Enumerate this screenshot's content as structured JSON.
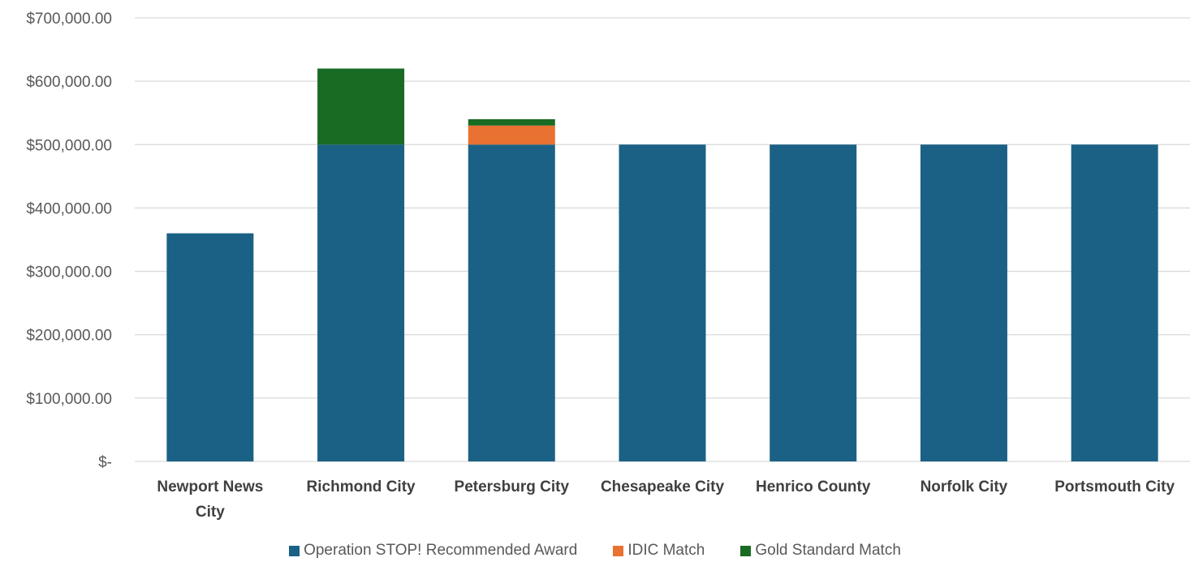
{
  "chart_data": {
    "type": "bar",
    "stacked": true,
    "categories": [
      [
        "Newport News",
        "City"
      ],
      [
        "Richmond City"
      ],
      [
        "Petersburg City"
      ],
      [
        "Chesapeake City"
      ],
      [
        "Henrico County"
      ],
      [
        "Norfolk City"
      ],
      [
        "Portsmouth City"
      ]
    ],
    "series": [
      {
        "name": "Operation STOP! Recommended Award",
        "color": "#1B6185",
        "values": [
          360000,
          500000,
          500000,
          500000,
          500000,
          500000,
          500000
        ]
      },
      {
        "name": "IDIC Match",
        "color": "#E97132",
        "values": [
          0,
          0,
          30000,
          0,
          0,
          0,
          0
        ]
      },
      {
        "name": "Gold Standard Match",
        "color": "#196B24",
        "values": [
          0,
          120000,
          10000,
          0,
          0,
          0,
          0
        ]
      }
    ],
    "ylim": [
      0,
      700000
    ],
    "yticks": [
      0,
      100000,
      200000,
      300000,
      400000,
      500000,
      600000,
      700000
    ],
    "ytick_labels": [
      "$-",
      "$100,000.00",
      "$200,000.00",
      "$300,000.00",
      "$400,000.00",
      "$500,000.00",
      "$600,000.00",
      "$700,000.00"
    ],
    "grid": true,
    "legend_position": "bottom"
  }
}
